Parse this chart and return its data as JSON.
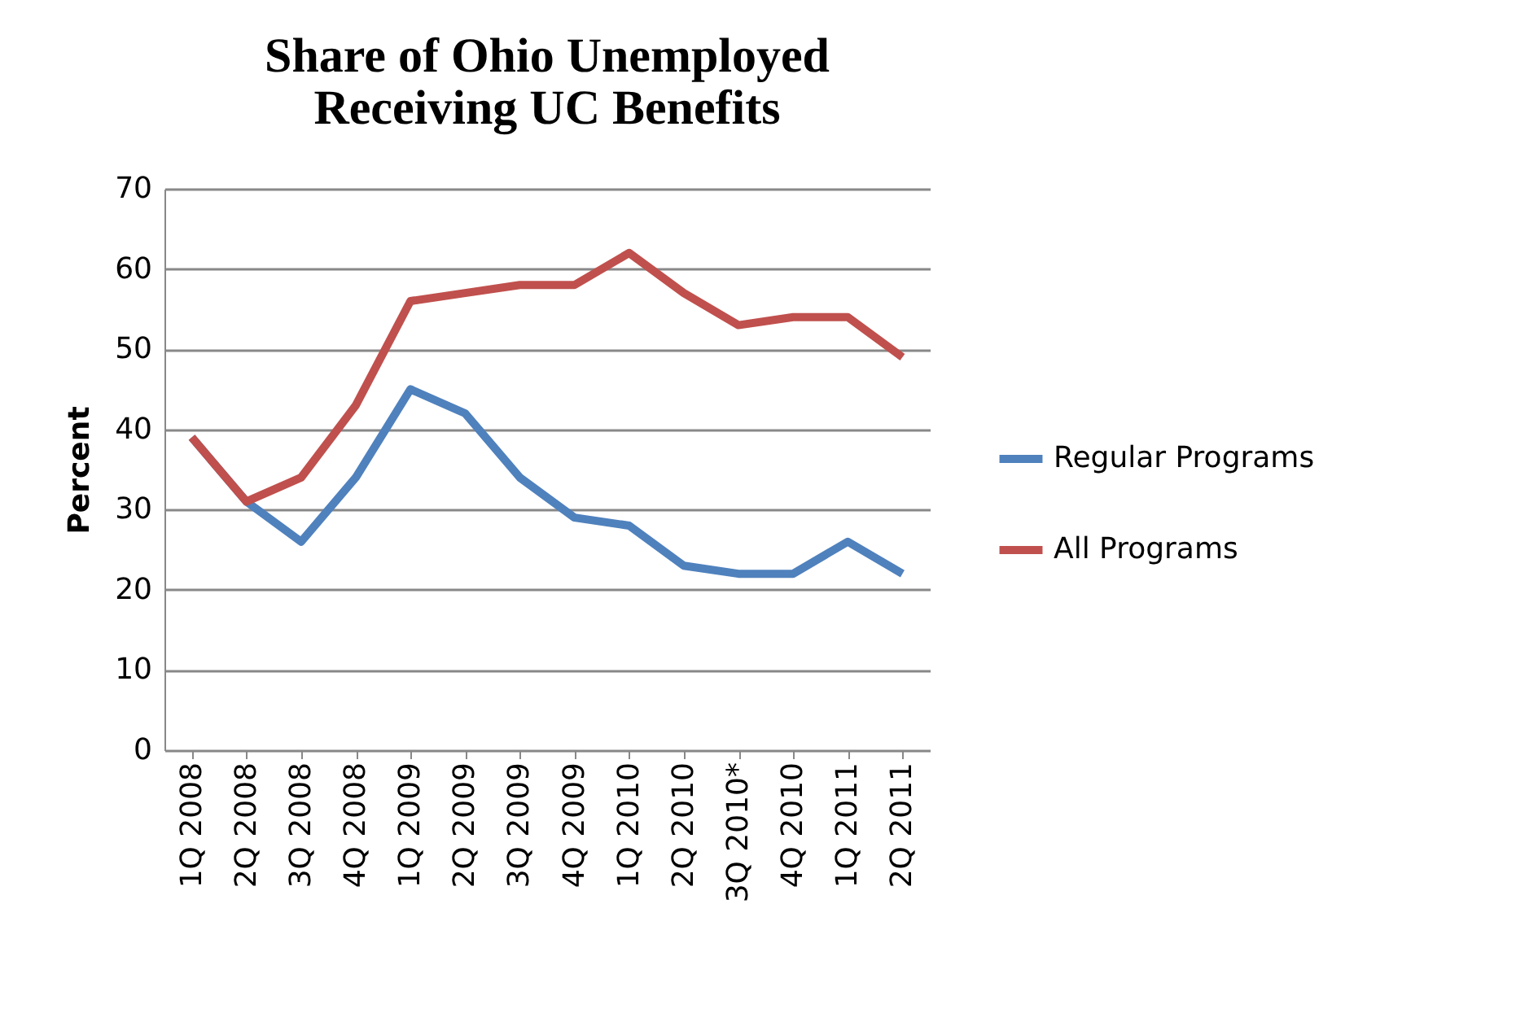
{
  "chart_data": {
    "type": "line",
    "title": "Share of Ohio Unemployed\nReceiving UC Benefits",
    "ylabel": "Percent",
    "categories": [
      "1Q 2008",
      "2Q 2008",
      "3Q 2008",
      "4Q 2008",
      "1Q 2009",
      "2Q 2009",
      "3Q 2009",
      "4Q 2009",
      "1Q 2010",
      "2Q 2010",
      "3Q 2010*",
      "4Q 2010",
      "1Q 2011",
      "2Q 2011"
    ],
    "series": [
      {
        "name": "Regular Programs",
        "color": "#4f81bd",
        "values": [
          39,
          31,
          26,
          34,
          45,
          42,
          34,
          29,
          28,
          23,
          22,
          22,
          26,
          22
        ]
      },
      {
        "name": "All Programs",
        "color": "#c0504d",
        "values": [
          39,
          31,
          34,
          43,
          56,
          57,
          58,
          58,
          62,
          57,
          53,
          54,
          54,
          49
        ]
      }
    ],
    "ylim": [
      0,
      70
    ],
    "yticks": [
      0,
      10,
      20,
      30,
      40,
      50,
      60,
      70
    ],
    "grid": "y",
    "legend": "right",
    "marker": "none",
    "line_style": "solid"
  }
}
